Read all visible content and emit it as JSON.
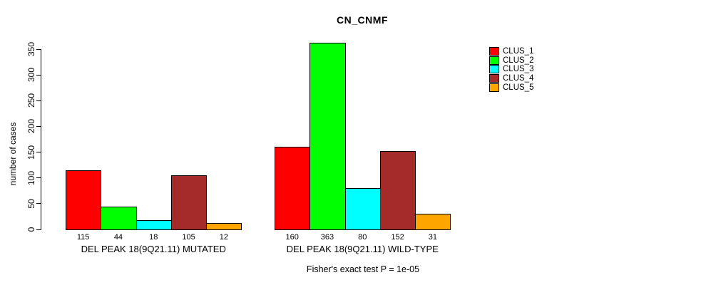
{
  "chart_data": {
    "type": "bar",
    "title": "CN_CNMF",
    "ylabel": "number of cases",
    "annotation": "Fisher's exact test P = 1e-05",
    "ylim": [
      0,
      350
    ],
    "yticks": [
      0,
      50,
      100,
      150,
      200,
      250,
      300,
      350
    ],
    "grid": false,
    "series_labels": [
      "CLUS_1",
      "CLUS_2",
      "CLUS_3",
      "CLUS_4",
      "CLUS_5"
    ],
    "legend": {
      "position": "top-right",
      "entries": [
        {
          "label": "CLUS_1",
          "color": "#FF0000"
        },
        {
          "label": "CLUS_2",
          "color": "#00FF00"
        },
        {
          "label": "CLUS_3",
          "color": "#00FFFF"
        },
        {
          "label": "CLUS_4",
          "color": "#A52A2A"
        },
        {
          "label": "CLUS_5",
          "color": "#FFA500"
        }
      ]
    },
    "groups": [
      {
        "label": "DEL PEAK 18(9Q21.11) MUTATED",
        "values": [
          115,
          44,
          18,
          105,
          12
        ]
      },
      {
        "label": "DEL PEAK 18(9Q21.11) WILD-TYPE",
        "values": [
          160,
          363,
          80,
          152,
          31
        ]
      }
    ],
    "bar_values_shown": true
  }
}
